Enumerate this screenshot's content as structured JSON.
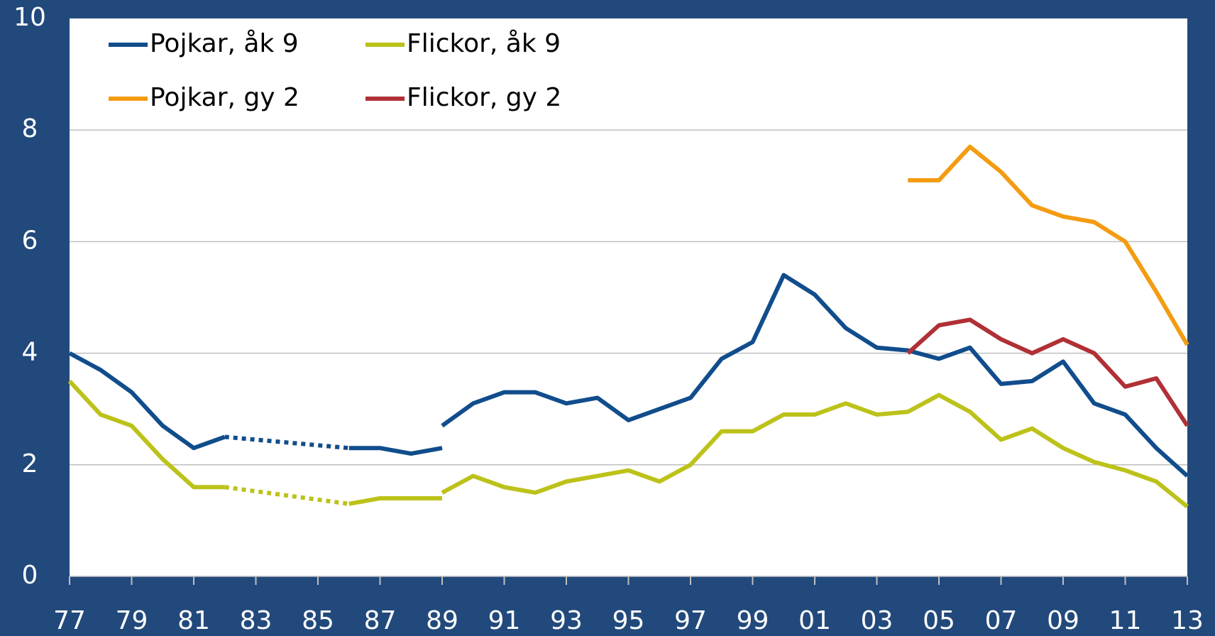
{
  "chart_data": {
    "type": "line",
    "xlim": [
      1977,
      2013
    ],
    "xticks": [
      {
        "value": 1977,
        "label": "77"
      },
      {
        "value": 1979,
        "label": "79"
      },
      {
        "value": 1981,
        "label": "81"
      },
      {
        "value": 1983,
        "label": "83"
      },
      {
        "value": 1985,
        "label": "85"
      },
      {
        "value": 1987,
        "label": "87"
      },
      {
        "value": 1989,
        "label": "89"
      },
      {
        "value": 1991,
        "label": "91"
      },
      {
        "value": 1993,
        "label": "93"
      },
      {
        "value": 1995,
        "label": "95"
      },
      {
        "value": 1997,
        "label": "97"
      },
      {
        "value": 1999,
        "label": "99"
      },
      {
        "value": 2001,
        "label": "01"
      },
      {
        "value": 2003,
        "label": "03"
      },
      {
        "value": 2005,
        "label": "05"
      },
      {
        "value": 2007,
        "label": "07"
      },
      {
        "value": 2009,
        "label": "09"
      },
      {
        "value": 2011,
        "label": "11"
      },
      {
        "value": 2013,
        "label": "13"
      }
    ],
    "ylim": [
      0,
      10
    ],
    "yticks": [
      0,
      2,
      4,
      6,
      8,
      10
    ],
    "grid": true,
    "legend": "upper left",
    "series": [
      {
        "name": "Pojkar, åk 9",
        "color": "#114d8c",
        "x": [
          1977,
          1978,
          1979,
          1980,
          1981,
          1982,
          null,
          1986,
          1987,
          1988,
          1989,
          null,
          1989,
          1990,
          1991,
          1992,
          1993,
          1994,
          1995,
          1996,
          1997,
          1998,
          1999,
          2000,
          2001,
          2002,
          2003,
          2004,
          2005,
          2006,
          2007,
          2008,
          2009,
          2010,
          2011,
          2012,
          2013
        ],
        "values": [
          4.0,
          3.7,
          3.3,
          2.7,
          2.3,
          2.5,
          null,
          2.3,
          2.3,
          2.2,
          2.3,
          null,
          2.7,
          3.1,
          3.3,
          3.3,
          3.1,
          3.2,
          2.8,
          3.0,
          3.2,
          3.9,
          4.2,
          5.4,
          5.05,
          4.45,
          4.1,
          4.05,
          3.9,
          4.1,
          3.45,
          3.5,
          3.85,
          3.1,
          2.9,
          2.3,
          1.8
        ]
      },
      {
        "name": "Flickor, åk 9",
        "color": "#bcc21a",
        "x": [
          1977,
          1978,
          1979,
          1980,
          1981,
          1982,
          null,
          1986,
          1987,
          1988,
          1989,
          null,
          1989,
          1990,
          1991,
          1992,
          1993,
          1994,
          1995,
          1996,
          1997,
          1998,
          1999,
          2000,
          2001,
          2002,
          2003,
          2004,
          2005,
          2006,
          2007,
          2008,
          2009,
          2010,
          2011,
          2012,
          2013
        ],
        "values": [
          3.5,
          2.9,
          2.7,
          2.1,
          1.6,
          1.6,
          null,
          1.3,
          1.4,
          1.4,
          1.4,
          null,
          1.5,
          1.8,
          1.6,
          1.5,
          1.7,
          1.8,
          1.9,
          1.7,
          2.0,
          2.6,
          2.6,
          2.9,
          2.9,
          3.1,
          2.9,
          2.95,
          3.25,
          2.95,
          2.45,
          2.65,
          2.3,
          2.05,
          1.9,
          1.7,
          1.25
        ]
      },
      {
        "name": "Pojkar, gy 2",
        "color": "#f39c12",
        "x": [
          2004,
          2005,
          2006,
          2007,
          2008,
          2009,
          2010,
          2011,
          2012,
          2013
        ],
        "values": [
          7.1,
          7.1,
          7.7,
          7.25,
          6.65,
          6.45,
          6.35,
          6.0,
          5.1,
          4.15
        ]
      },
      {
        "name": "Flickor, gy 2",
        "color": "#b03036",
        "x": [
          2004,
          2005,
          2006,
          2007,
          2008,
          2009,
          2010,
          2011,
          2012,
          2013
        ],
        "values": [
          4.0,
          4.5,
          4.6,
          4.25,
          4.0,
          4.25,
          4.0,
          3.4,
          3.55,
          2.7
        ]
      }
    ]
  }
}
